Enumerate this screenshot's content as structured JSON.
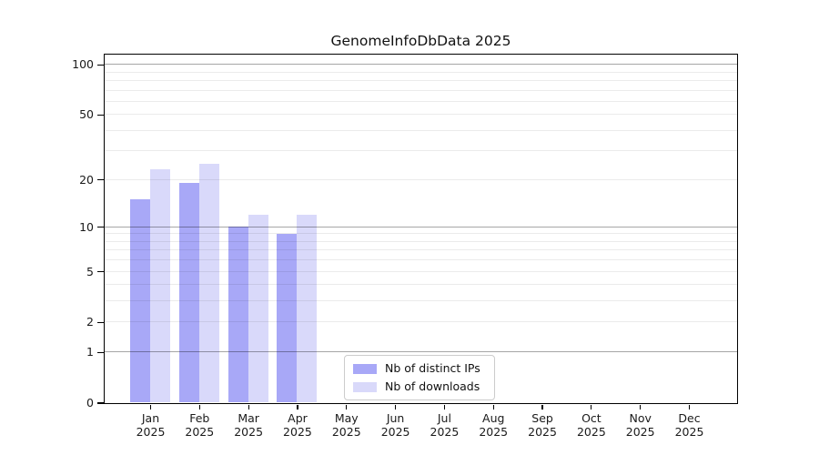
{
  "chart_data": {
    "type": "bar",
    "title": "GenomeInfoDbData 2025",
    "x_axis": {
      "months": [
        "Jan",
        "Feb",
        "Mar",
        "Apr",
        "May",
        "Jun",
        "Jul",
        "Aug",
        "Sep",
        "Oct",
        "Nov",
        "Dec"
      ],
      "year": "2025"
    },
    "y_axis": {
      "scale": "log10(value+1)",
      "ymax": 115,
      "ticks": [
        100,
        50,
        20,
        10,
        5,
        2,
        1,
        0
      ],
      "major_gridlines": [
        1,
        10,
        100
      ],
      "minor_gridlines": [
        2,
        3,
        4,
        5,
        6,
        7,
        8,
        9,
        20,
        30,
        40,
        50,
        60,
        70,
        80,
        90
      ]
    },
    "series": [
      {
        "name": "Nb of distinct IPs",
        "color": "#a8a8f7",
        "values": [
          15,
          19,
          10,
          9,
          0,
          0,
          0,
          0,
          0,
          0,
          0,
          0
        ]
      },
      {
        "name": "Nb of downloads",
        "color": "#d9d9fa",
        "values": [
          23,
          25,
          12,
          12,
          0,
          0,
          0,
          0,
          0,
          0,
          0,
          0
        ]
      }
    ],
    "legend": {
      "position": "bottom-center"
    },
    "colors": {
      "grid_major": "#a6a6a6",
      "grid_minor": "#ececec",
      "axis": "#000000"
    }
  }
}
